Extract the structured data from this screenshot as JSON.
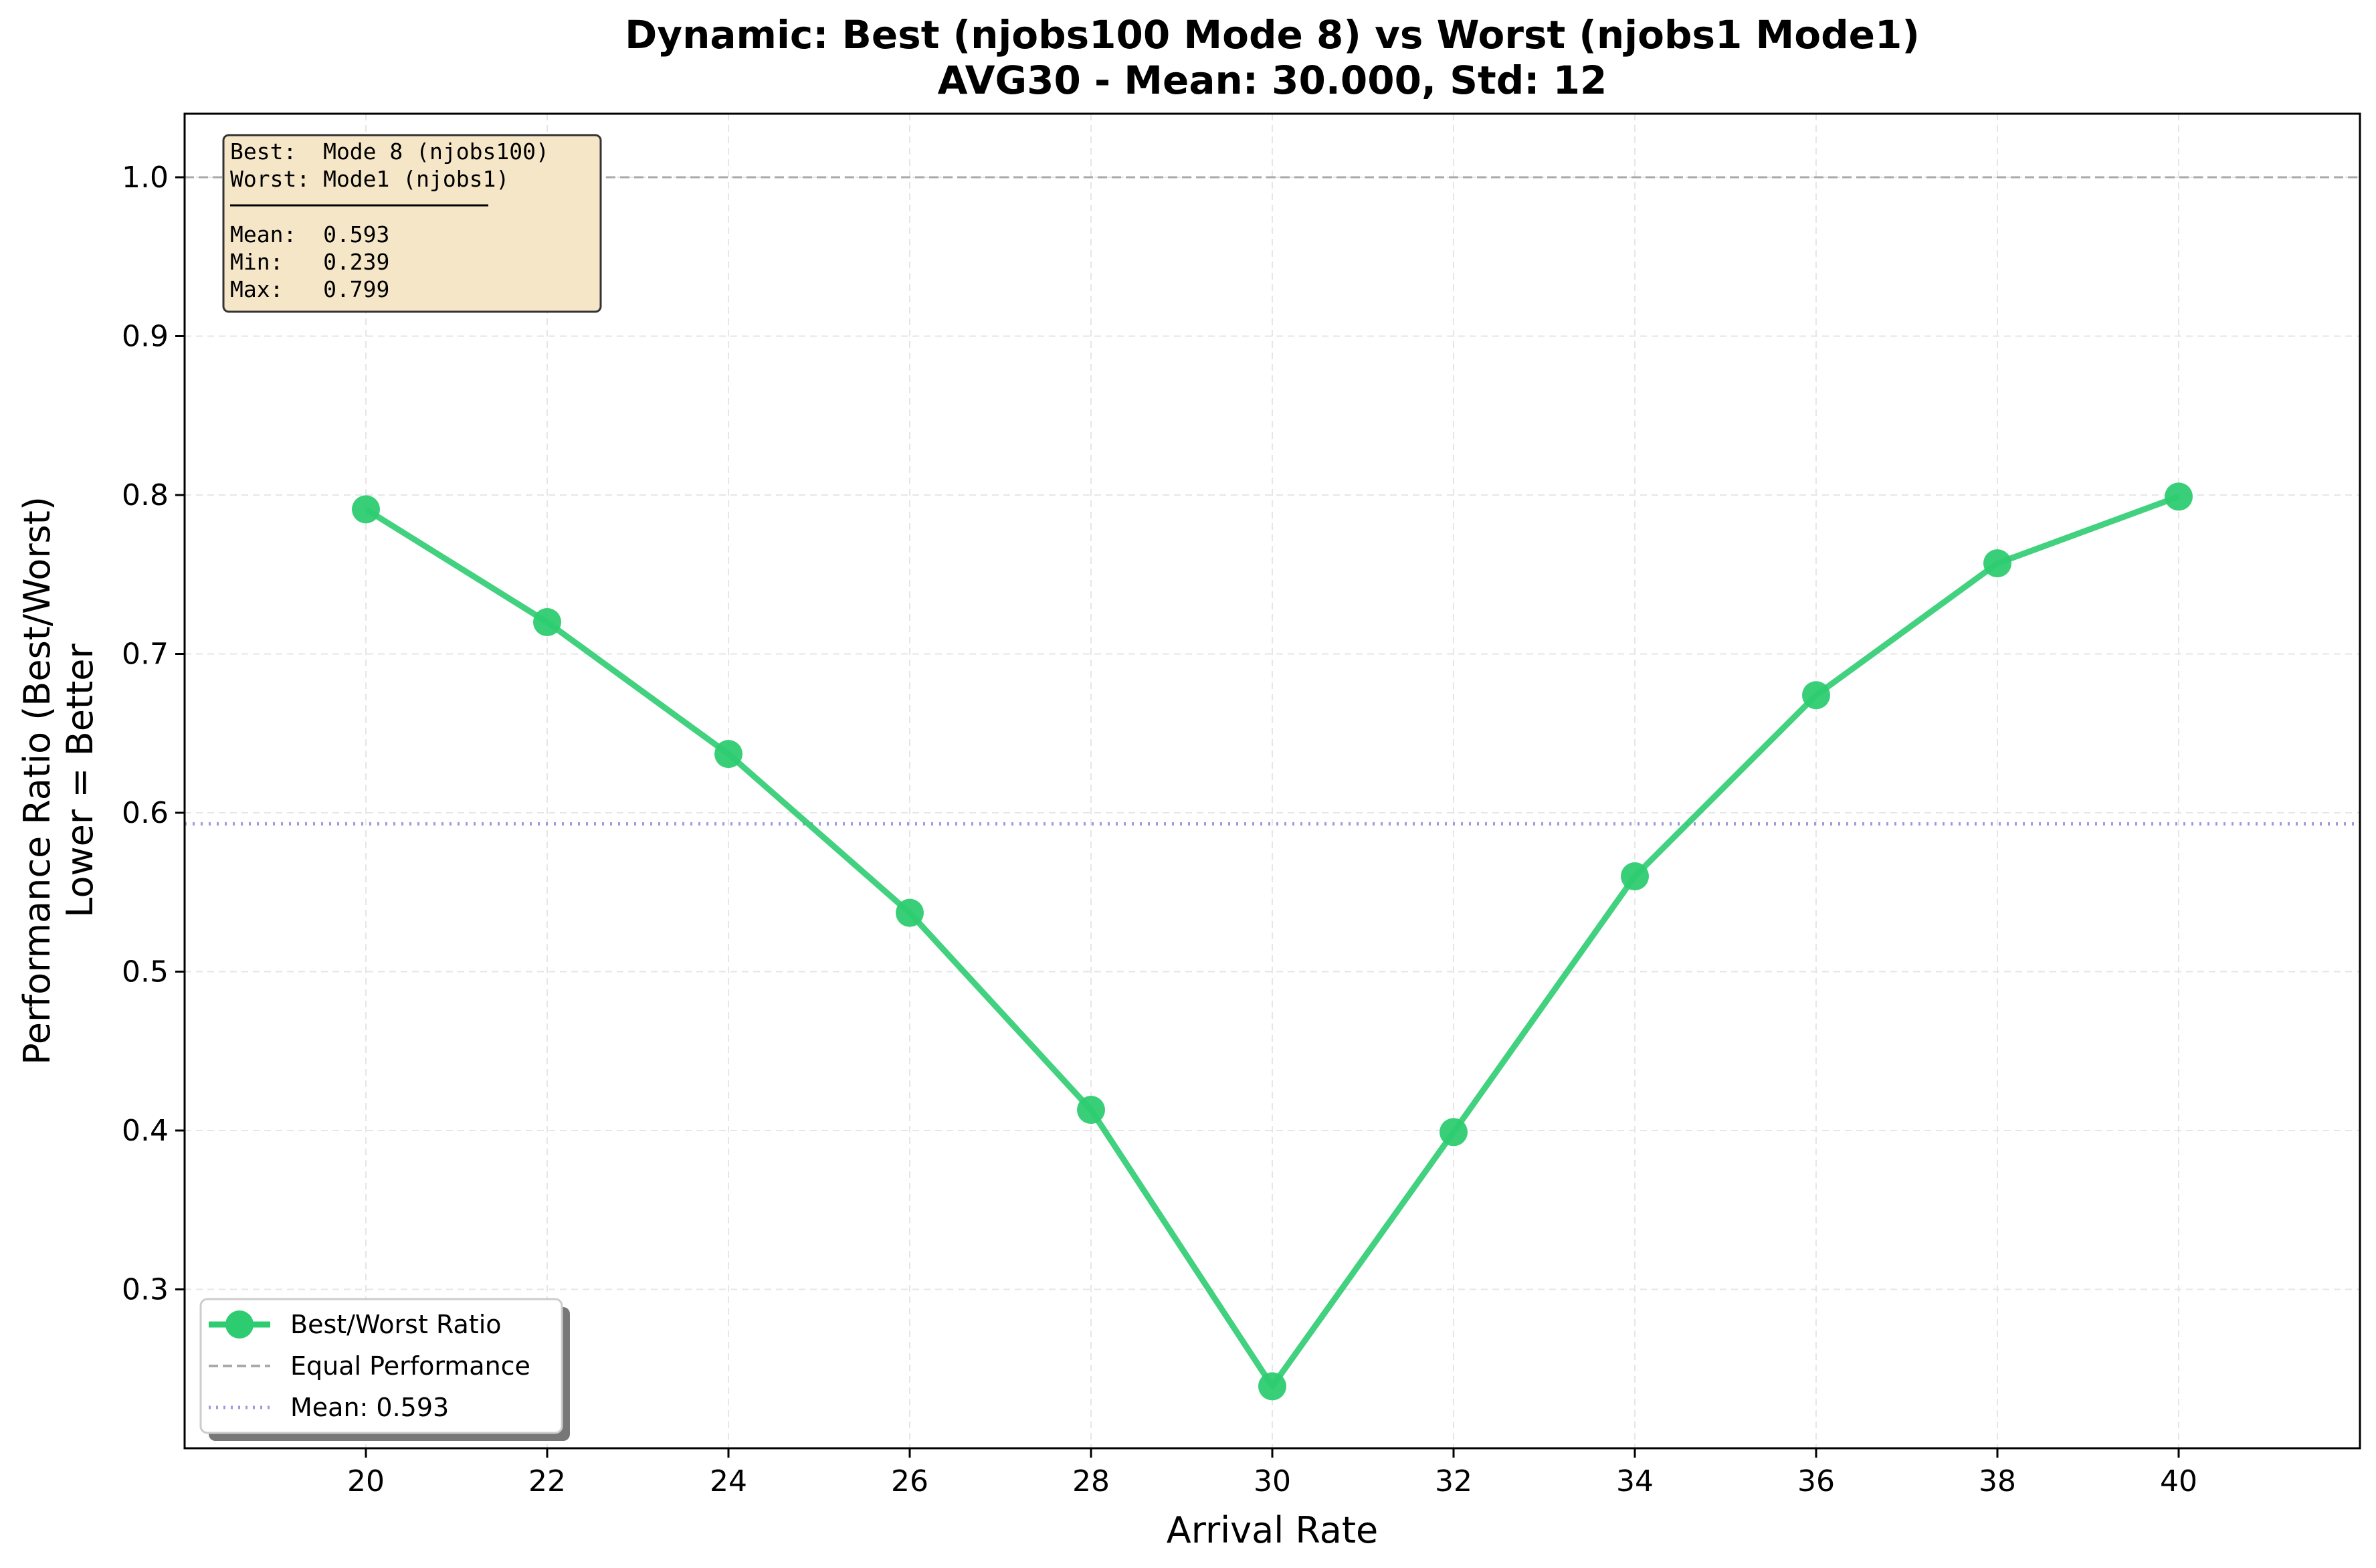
{
  "chart_data": {
    "type": "line",
    "title_line1": "Dynamic: Best (njobs100 Mode 8) vs Worst (njobs1 Mode1)",
    "title_line2": "AVG30 - Mean: 30.000, Std: 12",
    "xlabel": "Arrival Rate",
    "ylabel_line1": "Performance Ratio (Best/Worst)",
    "ylabel_line2": "Lower = Better",
    "xlim": [
      18,
      42
    ],
    "ylim": [
      0.2,
      1.04
    ],
    "x_ticks": [
      20,
      22,
      24,
      26,
      28,
      30,
      32,
      34,
      36,
      38,
      40
    ],
    "x_tick_labels": [
      "20",
      "22",
      "24",
      "26",
      "28",
      "30",
      "32",
      "34",
      "36",
      "38",
      "40"
    ],
    "y_ticks": [
      0.3,
      0.4,
      0.5,
      0.6,
      0.7,
      0.8,
      0.9,
      1.0
    ],
    "y_tick_labels": [
      "0.3",
      "0.4",
      "0.5",
      "0.6",
      "0.7",
      "0.8",
      "0.9",
      "1.0"
    ],
    "grid": true,
    "series": [
      {
        "name": "Best/Worst Ratio",
        "color": "#2ecc71",
        "x": [
          20,
          22,
          24,
          26,
          28,
          30,
          32,
          34,
          36,
          38,
          40
        ],
        "y": [
          0.791,
          0.72,
          0.637,
          0.537,
          0.413,
          0.239,
          0.399,
          0.56,
          0.674,
          0.757,
          0.799
        ]
      }
    ],
    "reference_lines": [
      {
        "name": "Equal Performance",
        "y": 1.0,
        "color": "#aaaaaa",
        "style": "dashed"
      },
      {
        "name": "Mean: 0.593",
        "y": 0.593,
        "color": "#9b9bdb",
        "style": "dotted"
      }
    ],
    "legend": {
      "position": "lower-left",
      "entries": [
        "Best/Worst Ratio",
        "Equal Performance",
        "Mean: 0.593"
      ]
    },
    "stats_box": {
      "position": "top-left",
      "background": "#f5e6c8",
      "lines": [
        "Best:  Mode 8 (njobs100)",
        "Worst: Mode1 (njobs1)",
        "",
        "Mean:  0.593",
        "Min:   0.239",
        "Max:   0.799"
      ]
    }
  }
}
